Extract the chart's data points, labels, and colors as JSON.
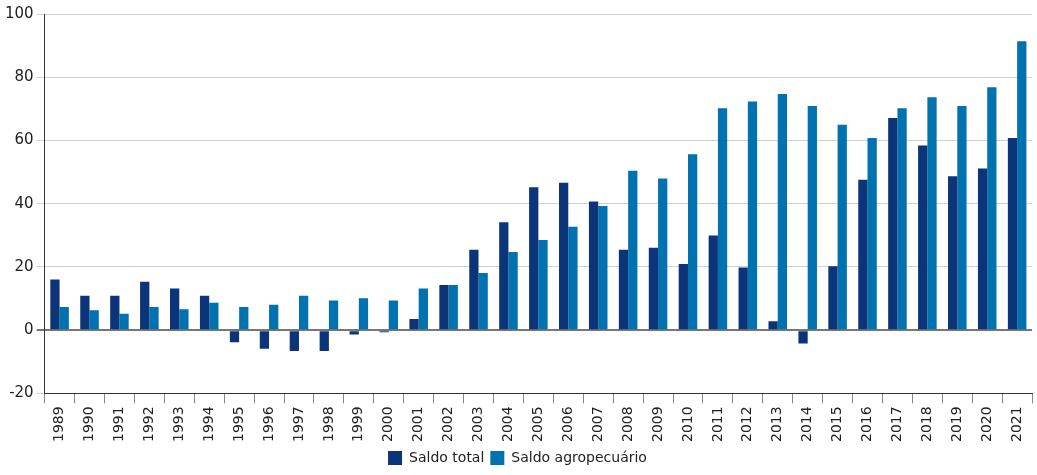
{
  "chart_data": {
    "type": "bar",
    "categories": [
      "1989",
      "1990",
      "1991",
      "1992",
      "1993",
      "1994",
      "1995",
      "1996",
      "1997",
      "1998",
      "1999",
      "2000",
      "2001",
      "2002",
      "2003",
      "2004",
      "2005",
      "2006",
      "2007",
      "2008",
      "2009",
      "2010",
      "2011",
      "2012",
      "2013",
      "2014",
      "2015",
      "2016",
      "2017",
      "2018",
      "2019",
      "2020",
      "2021"
    ],
    "series": [
      {
        "name": "Saldo total",
        "color": "#0b3479",
        "values": [
          16.0,
          10.9,
          10.9,
          15.3,
          13.2,
          10.9,
          -3.8,
          -5.9,
          -6.6,
          -6.6,
          -1.4,
          -0.7,
          3.5,
          14.3,
          25.4,
          34.1,
          45.2,
          46.6,
          40.7,
          25.4,
          26.1,
          20.9,
          29.9,
          19.8,
          2.8,
          -4.2,
          20.2,
          47.6,
          67.1,
          58.4,
          48.7,
          51.1,
          60.8
        ]
      },
      {
        "name": "Saldo agropecuário",
        "color": "#0072b0",
        "values": [
          7.3,
          6.3,
          5.2,
          7.3,
          6.6,
          8.7,
          7.3,
          8.0,
          10.9,
          9.4,
          10.1,
          9.4,
          13.2,
          14.3,
          18.1,
          24.7,
          28.5,
          32.7,
          39.3,
          50.4,
          48.0,
          55.6,
          70.2,
          72.3,
          74.7,
          70.9,
          65.0,
          60.8,
          70.2,
          73.7,
          70.9,
          76.8,
          91.4
        ]
      }
    ],
    "ylim": [
      -20,
      100
    ],
    "yticks": [
      -20,
      0,
      20,
      40,
      60,
      80,
      100
    ],
    "grid": "y",
    "legend": "bottom"
  }
}
